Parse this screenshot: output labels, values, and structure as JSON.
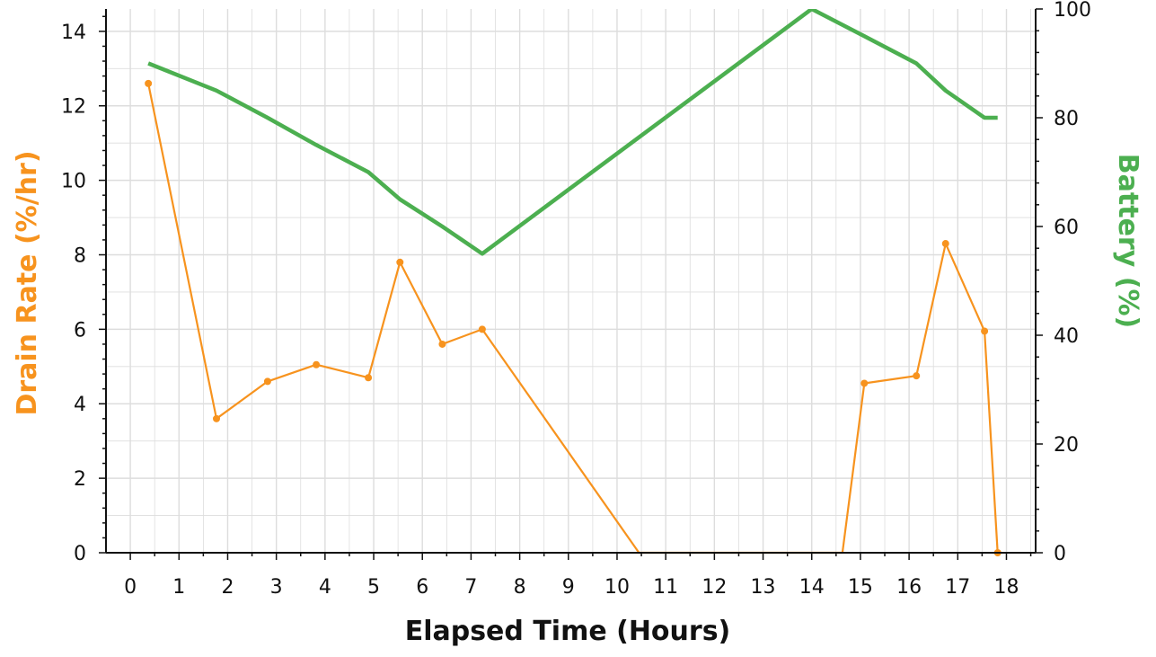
{
  "chart_data": {
    "type": "line",
    "xlabel": "Elapsed Time (Hours)",
    "ylabel_left": "Drain Rate (%/hr)",
    "ylabel_right": "Battery (%)",
    "xlim": [
      -0.5,
      18.6
    ],
    "ylim_left": [
      0,
      14.6
    ],
    "ylim_right": [
      0,
      100
    ],
    "x_ticks": [
      0,
      1,
      2,
      3,
      4,
      5,
      6,
      7,
      8,
      9,
      10,
      11,
      12,
      13,
      14,
      15,
      16,
      17,
      18
    ],
    "y_left_ticks": [
      0,
      2,
      4,
      6,
      8,
      10,
      12,
      14
    ],
    "y_right_ticks": [
      0,
      20,
      40,
      60,
      80,
      100
    ],
    "grid": true,
    "colors": {
      "drain": "#f7931e",
      "battery": "#4caf50",
      "axis": "#111111",
      "grid": "#dddddd"
    },
    "series": [
      {
        "axis": "left",
        "color": "#f7931e",
        "markers": true,
        "x": [
          0.37,
          1.77,
          2.82,
          3.82,
          4.89,
          5.54,
          6.41,
          7.23,
          10.45,
          14.63,
          15.08,
          16.15,
          16.75,
          17.55,
          17.82
        ],
        "y": [
          12.6,
          3.6,
          4.6,
          5.05,
          4.7,
          7.8,
          5.6,
          6.0,
          0,
          0,
          4.55,
          4.75,
          8.3,
          5.95,
          0
        ],
        "marker_mask": [
          1,
          1,
          1,
          1,
          1,
          1,
          1,
          1,
          0,
          0,
          1,
          1,
          1,
          1,
          1
        ]
      },
      {
        "axis": "right",
        "color": "#4caf50",
        "markers": false,
        "x": [
          0.37,
          1.77,
          2.82,
          3.82,
          4.89,
          5.54,
          6.41,
          7.23,
          14.0,
          15.08,
          16.15,
          16.75,
          17.55,
          17.82
        ],
        "y": [
          90,
          85,
          80,
          75,
          70,
          65,
          60,
          55,
          100,
          95,
          90,
          85,
          80,
          80
        ]
      }
    ]
  }
}
